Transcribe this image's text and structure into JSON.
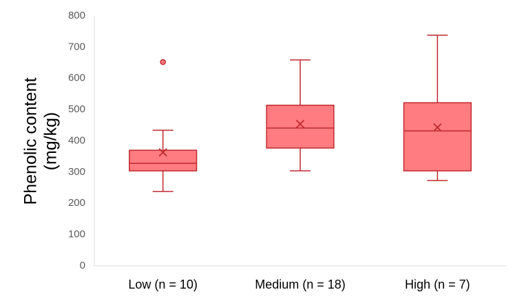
{
  "chart_data": {
    "type": "box",
    "ylabel": [
      "Phenolic content",
      "(mg/kg)"
    ],
    "categories": [
      "Low (n = 10)",
      "Medium (n = 18)",
      "High (n = 7)"
    ],
    "whisker_low": [
      238,
      304,
      273
    ],
    "q1": [
      304,
      377,
      304
    ],
    "median": [
      328,
      441,
      432
    ],
    "q3": [
      370,
      514,
      522
    ],
    "whisker_high": [
      434,
      659,
      738
    ],
    "mean": [
      363,
      454,
      443
    ],
    "outliers": [
      [
        652
      ],
      [],
      []
    ],
    "fill": "#ff7c80",
    "stroke": "#c0282d",
    "ylim": [
      0,
      800
    ],
    "yticks": [
      0,
      100,
      200,
      300,
      400,
      500,
      600,
      700,
      800
    ],
    "grid": false
  }
}
